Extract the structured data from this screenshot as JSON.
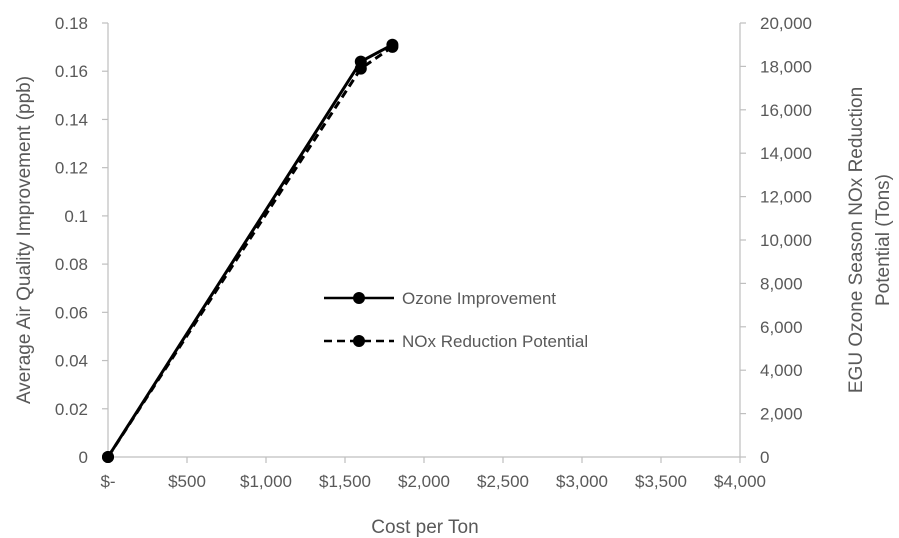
{
  "chart_data": {
    "type": "line",
    "xlabel": "Cost per Ton",
    "ylabel": "Average Air Quality Improvement (ppb)",
    "y2label_line1": "EGU Ozone Season NOx Reduction",
    "y2label_line2": "Potential (Tons)",
    "xlim": [
      0,
      4000
    ],
    "ylim": [
      0,
      0.18
    ],
    "y2lim": [
      0,
      20000
    ],
    "x_ticks": [
      0,
      500,
      1000,
      1500,
      2000,
      2500,
      3000,
      3500,
      4000
    ],
    "x_tick_labels": [
      "$-",
      "$500",
      "$1,000",
      "$1,500",
      "$2,000",
      "$2,500",
      "$3,000",
      "$3,500",
      "$4,000"
    ],
    "y_ticks": [
      0,
      0.02,
      0.04,
      0.06,
      0.08,
      0.1,
      0.12,
      0.14,
      0.16,
      0.18
    ],
    "y_tick_labels": [
      "0",
      "0.02",
      "0.04",
      "0.06",
      "0.08",
      "0.1",
      "0.12",
      "0.14",
      "0.16",
      "0.18"
    ],
    "y2_ticks": [
      0,
      2000,
      4000,
      6000,
      8000,
      10000,
      12000,
      14000,
      16000,
      18000,
      20000
    ],
    "y2_tick_labels": [
      "0",
      "2,000",
      "4,000",
      "6,000",
      "8,000",
      "10,000",
      "12,000",
      "14,000",
      "16,000",
      "18,000",
      "20,000"
    ],
    "grid": false,
    "legend_position": "center",
    "series": [
      {
        "name": "Ozone Improvement",
        "axis": "left",
        "style": "solid",
        "color": "#000000",
        "x": [
          0,
          1600,
          1800
        ],
        "y": [
          0,
          0.164,
          0.171
        ]
      },
      {
        "name": "NOx Reduction Potential",
        "axis": "right",
        "style": "dashed",
        "color": "#000000",
        "x": [
          0,
          1600,
          1800
        ],
        "y": [
          0,
          17900,
          18900
        ]
      }
    ]
  }
}
